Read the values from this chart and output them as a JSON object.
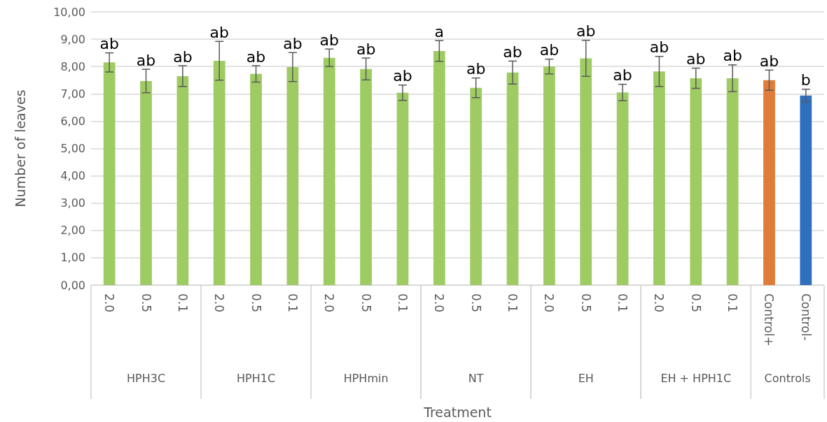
{
  "chart_data": {
    "type": "bar",
    "xlabel": "Treatment",
    "ylabel": "Number of leaves",
    "categories": [
      "2.0",
      "0.5",
      "0.1",
      "2.0",
      "0.5",
      "0.1",
      "2.0",
      "0.5",
      "0.1",
      "2.0",
      "0.5",
      "0.1",
      "2.0",
      "0.5",
      "0.1",
      "2.0",
      "0.5",
      "0.1",
      "Control+",
      "Control-"
    ],
    "values": [
      8.15,
      7.47,
      7.65,
      8.21,
      7.73,
      7.98,
      8.32,
      7.91,
      7.04,
      8.57,
      7.22,
      7.78,
      8.0,
      8.3,
      7.05,
      7.82,
      7.57,
      7.57,
      7.5,
      6.94
    ],
    "errors": [
      0.35,
      0.43,
      0.38,
      0.71,
      0.3,
      0.53,
      0.32,
      0.4,
      0.28,
      0.38,
      0.36,
      0.42,
      0.27,
      0.66,
      0.3,
      0.55,
      0.37,
      0.49,
      0.37,
      0.23
    ],
    "value_labels": [
      "ab",
      "ab",
      "ab",
      "ab",
      "ab",
      "ab",
      "ab",
      "ab",
      "ab",
      "a",
      "ab",
      "ab",
      "ab",
      "ab",
      "ab",
      "ab",
      "ab",
      "ab",
      "ab",
      "b"
    ],
    "colors": [
      "#9fcb63",
      "#9fcb63",
      "#9fcb63",
      "#9fcb63",
      "#9fcb63",
      "#9fcb63",
      "#9fcb63",
      "#9fcb63",
      "#9fcb63",
      "#9fcb63",
      "#9fcb63",
      "#9fcb63",
      "#9fcb63",
      "#9fcb63",
      "#9fcb63",
      "#9fcb63",
      "#9fcb63",
      "#9fcb63",
      "#e07b39",
      "#2e6fbe"
    ],
    "annotations": [
      "HPH3C",
      "HPH1C",
      "HPHmin",
      "NT",
      "EH",
      "EH + HPH1C",
      "Controls"
    ],
    "ylim": [
      0,
      10
    ],
    "yticks": [
      {
        "value": 0,
        "label": "0,00"
      },
      {
        "value": 1,
        "label": "1,00"
      },
      {
        "value": 2,
        "label": "2,00"
      },
      {
        "value": 3,
        "label": "3,00"
      },
      {
        "value": 4,
        "label": "4,00"
      },
      {
        "value": 5,
        "label": "5,00"
      },
      {
        "value": 6,
        "label": "6,00"
      },
      {
        "value": 7,
        "label": "7,00"
      },
      {
        "value": 8,
        "label": "8,00"
      },
      {
        "value": 9,
        "label": "9,00"
      },
      {
        "value": 10,
        "label": "10,00"
      }
    ],
    "grid": "y"
  }
}
